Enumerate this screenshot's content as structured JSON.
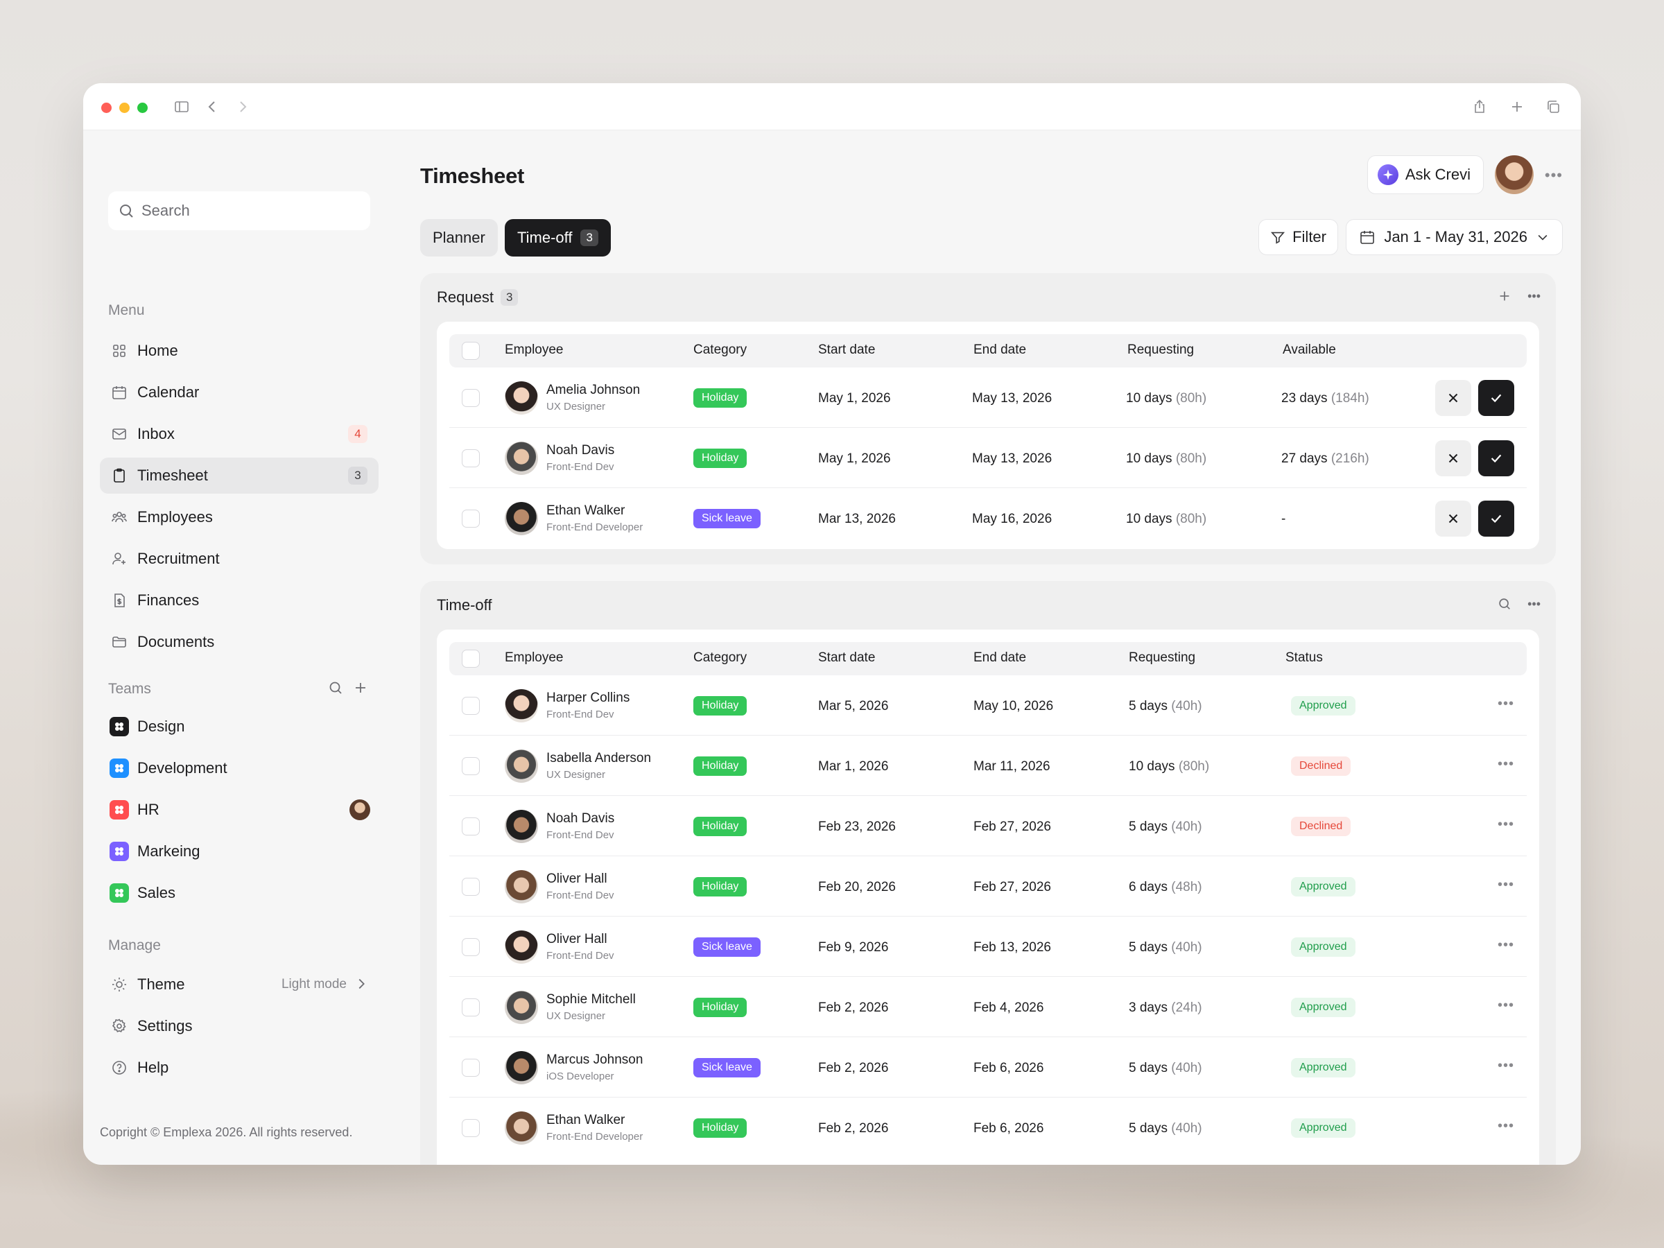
{
  "sidebar": {
    "search_placeholder": "Search",
    "menu_label": "Menu",
    "menu": [
      {
        "label": "Home",
        "icon": "grid-icon"
      },
      {
        "label": "Calendar",
        "icon": "calendar-icon"
      },
      {
        "label": "Inbox",
        "icon": "mail-icon",
        "badge": "4"
      },
      {
        "label": "Timesheet",
        "icon": "clipboard-icon",
        "badge": "3"
      },
      {
        "label": "Employees",
        "icon": "users-icon"
      },
      {
        "label": "Recruitment",
        "icon": "user-plus-icon"
      },
      {
        "label": "Finances",
        "icon": "dollar-file-icon"
      },
      {
        "label": "Documents",
        "icon": "folder-icon"
      }
    ],
    "teams_label": "Teams",
    "teams": [
      {
        "label": "Design",
        "color": "#1c1c1e"
      },
      {
        "label": "Development",
        "color": "#1e90ff"
      },
      {
        "label": "HR",
        "color": "#ff4d4f"
      },
      {
        "label": "Markeing",
        "color": "#7b61ff"
      },
      {
        "label": "Sales",
        "color": "#34c759"
      }
    ],
    "manage_label": "Manage",
    "theme_label": "Theme",
    "theme_value": "Light mode",
    "settings_label": "Settings",
    "help_label": "Help",
    "copyright": "Copright © Emplexa 2026. All rights reserved."
  },
  "header": {
    "title": "Timesheet",
    "ask_label": "Ask Crevi"
  },
  "tabs": {
    "planner": "Planner",
    "timeoff": "Time-off",
    "timeoff_count": "3"
  },
  "filters": {
    "filter_label": "Filter",
    "date_range": "Jan 1 - May 31, 2026"
  },
  "request": {
    "title": "Request",
    "count": "3",
    "columns": [
      "Employee",
      "Category",
      "Start date",
      "End date",
      "Requesting",
      "Available"
    ],
    "rows": [
      {
        "name": "Amelia Johnson",
        "role": "UX Designer",
        "category": "Holiday",
        "start": "May 1, 2026",
        "end": "May 13, 2026",
        "req": "10 days",
        "req_h": "(80h)",
        "avail": "23 days",
        "avail_h": "(184h)"
      },
      {
        "name": "Noah Davis",
        "role": "Front-End Dev",
        "category": "Holiday",
        "start": "May 1, 2026",
        "end": "May 13, 2026",
        "req": "10 days",
        "req_h": "(80h)",
        "avail": "27 days",
        "avail_h": "(216h)"
      },
      {
        "name": "Ethan Walker",
        "role": "Front-End Developer",
        "category": "Sick leave",
        "start": "Mar 13, 2026",
        "end": "May 16, 2026",
        "req": "10 days",
        "req_h": "(80h)",
        "avail": "-",
        "avail_h": ""
      }
    ]
  },
  "timeoff": {
    "title": "Time-off",
    "columns": [
      "Employee",
      "Category",
      "Start date",
      "End date",
      "Requesting",
      "Status"
    ],
    "rows": [
      {
        "name": "Harper Collins",
        "role": "Front-End Dev",
        "category": "Holiday",
        "start": "Mar 5, 2026",
        "end": "May 10, 2026",
        "req": "5 days",
        "req_h": "(40h)",
        "status": "Approved"
      },
      {
        "name": "Isabella Anderson",
        "role": "UX Designer",
        "category": "Holiday",
        "start": "Mar 1, 2026",
        "end": "Mar 11, 2026",
        "req": "10 days",
        "req_h": "(80h)",
        "status": "Declined"
      },
      {
        "name": "Noah Davis",
        "role": "Front-End Dev",
        "category": "Holiday",
        "start": "Feb 23, 2026",
        "end": "Feb 27, 2026",
        "req": "5 days",
        "req_h": "(40h)",
        "status": "Declined"
      },
      {
        "name": "Oliver Hall",
        "role": "Front-End Dev",
        "category": "Holiday",
        "start": "Feb 20, 2026",
        "end": "Feb 27, 2026",
        "req": "6 days",
        "req_h": "(48h)",
        "status": "Approved"
      },
      {
        "name": "Oliver Hall",
        "role": "Front-End Dev",
        "category": "Sick leave",
        "start": "Feb 9, 2026",
        "end": "Feb 13, 2026",
        "req": "5 days",
        "req_h": "(40h)",
        "status": "Approved"
      },
      {
        "name": "Sophie Mitchell",
        "role": "UX Designer",
        "category": "Holiday",
        "start": "Feb 2, 2026",
        "end": "Feb 4, 2026",
        "req": "3 days",
        "req_h": "(24h)",
        "status": "Approved"
      },
      {
        "name": "Marcus Johnson",
        "role": "iOS Developer",
        "category": "Sick leave",
        "start": "Feb 2, 2026",
        "end": "Feb 6, 2026",
        "req": "5 days",
        "req_h": "(40h)",
        "status": "Approved"
      },
      {
        "name": "Ethan Walker",
        "role": "Front-End Developer",
        "category": "Holiday",
        "start": "Feb 2, 2026",
        "end": "Feb 6, 2026",
        "req": "5 days",
        "req_h": "(40h)",
        "status": "Approved"
      }
    ]
  }
}
